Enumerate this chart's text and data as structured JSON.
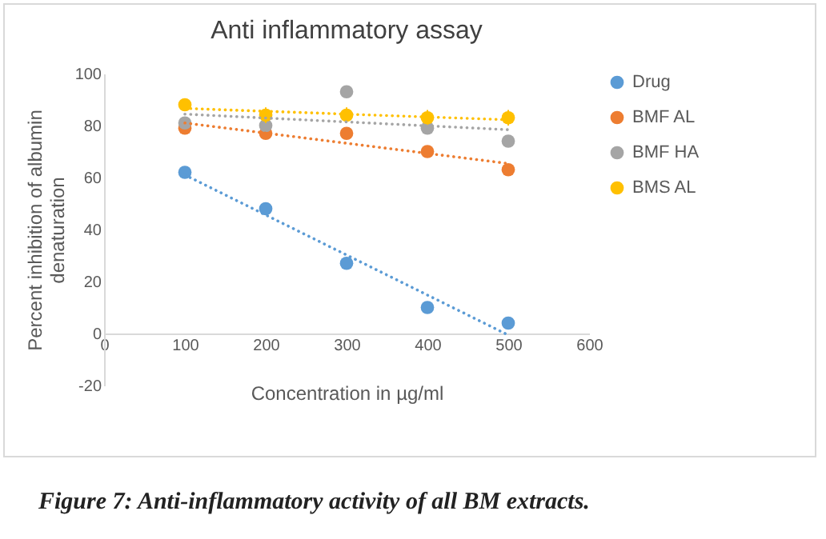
{
  "chart_data": {
    "type": "scatter",
    "title": "Anti inflammatory assay",
    "xlabel": "Concentration in µg/ml",
    "ylabel": "Percent inhibition of albumin\ndenaturation",
    "x": [
      100,
      200,
      300,
      400,
      500
    ],
    "series": [
      {
        "name": "Drug",
        "color": "#5b9bd5",
        "values": [
          62,
          48,
          27,
          10,
          4
        ]
      },
      {
        "name": "BMF AL",
        "color": "#ed7d31",
        "values": [
          79,
          77,
          77,
          70,
          63
        ]
      },
      {
        "name": "BMF HA",
        "color": "#a5a5a5",
        "values": [
          81,
          80,
          93,
          79,
          74
        ]
      },
      {
        "name": "BMS AL",
        "color": "#ffc000",
        "values": [
          88,
          84,
          84,
          83,
          83
        ],
        "errors": [
          null,
          3,
          3,
          3,
          3
        ]
      },
      {
        "type": "line",
        "color": "#5b9bd5",
        "values": [
          61,
          45.6,
          30.2,
          14.8,
          -0.6
        ],
        "line_style": "dotted",
        "marker": "none"
      },
      {
        "type": "line",
        "color": "#ed7d31",
        "values": [
          81,
          77.1,
          73.2,
          69.3,
          65.4
        ],
        "line_style": "dotted",
        "marker": "none"
      },
      {
        "type": "line",
        "color": "#a5a5a5",
        "values": [
          84.4,
          82.9,
          81.4,
          79.9,
          78.4
        ],
        "line_style": "dotted",
        "marker": "none"
      },
      {
        "type": "line",
        "color": "#ffc000",
        "values": [
          86.6,
          85.5,
          84.4,
          83.3,
          82.2
        ],
        "line_style": "dotted",
        "marker": "none"
      }
    ],
    "xlim": [
      0,
      600
    ],
    "xticks": [
      0,
      100,
      200,
      300,
      400,
      500,
      600
    ],
    "ylim": [
      -20,
      100
    ],
    "yticks": [
      -20,
      0,
      20,
      40,
      60,
      80,
      100
    ],
    "grid": false,
    "legend": "right",
    "marker": "circle",
    "annotations": [
      "Figure 7: Anti-inflammatory activity of all BM extracts."
    ]
  }
}
